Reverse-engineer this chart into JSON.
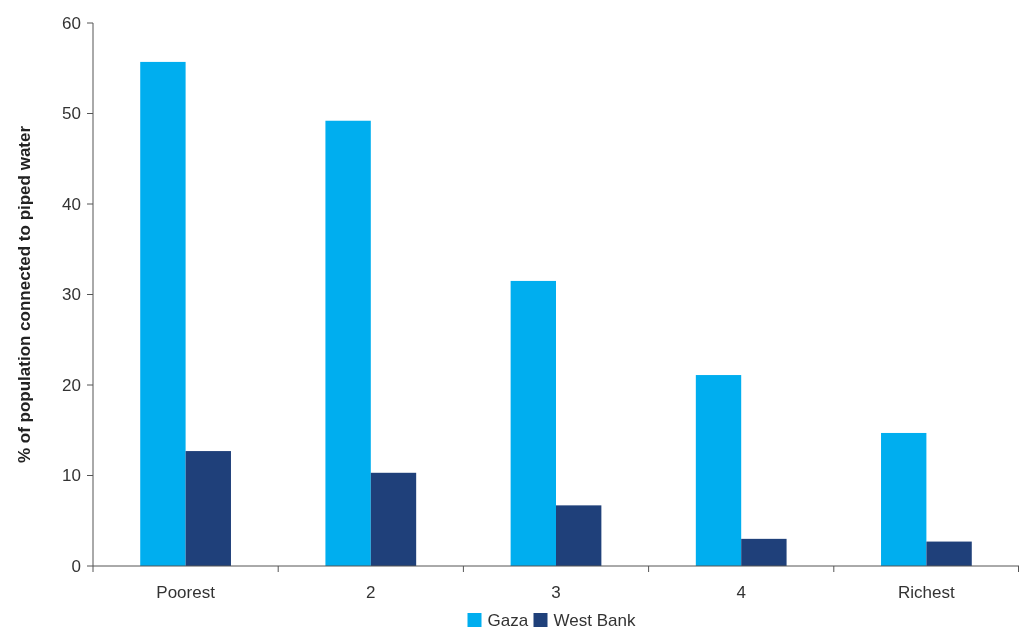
{
  "chart_data": {
    "type": "bar",
    "ylabel": "% of population connected to piped water",
    "categories": [
      "Poorest",
      "2",
      "3",
      "4",
      "Richest"
    ],
    "series": [
      {
        "name": "Gaza",
        "color": "#00aeef",
        "values": [
          55.7,
          49.2,
          31.5,
          21.1,
          14.7
        ]
      },
      {
        "name": "West Bank",
        "color": "#1f407a",
        "values": [
          12.7,
          10.3,
          6.7,
          3.0,
          2.7
        ]
      }
    ],
    "ylim": [
      0,
      60
    ],
    "yticks": [
      0,
      10,
      20,
      30,
      40,
      50,
      60
    ],
    "grid": false,
    "legend": "bottom"
  }
}
